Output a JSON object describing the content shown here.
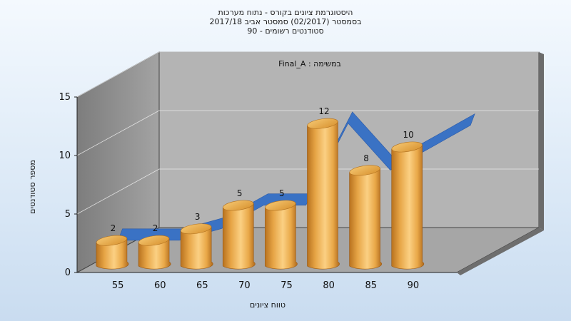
{
  "chart_data": {
    "type": "bar",
    "title_lines": [
      "היסטוגרמת ציונים בקורס - נתוח מערכות",
      "בסמסטר  (02/2017)  סמסטר אביב 2017/18",
      "סטודנטים רשומים - 90"
    ],
    "annotation": "במשימה : Final_A",
    "xlabel": "טווח ציונים",
    "ylabel": "מספר סטודנטים",
    "categories": [
      "55",
      "60",
      "65",
      "70",
      "75",
      "80",
      "85",
      "90"
    ],
    "series": [
      {
        "type": "bar",
        "values": [
          2,
          2,
          3,
          5,
          5,
          12,
          8,
          10
        ]
      },
      {
        "type": "line",
        "values": [
          2,
          2,
          3,
          5,
          5,
          12,
          8,
          10
        ]
      }
    ],
    "y_ticks": [
      0,
      5,
      10,
      15
    ],
    "ylim": [
      0,
      15
    ],
    "grid": true,
    "colors": {
      "bar": "#e8a84c",
      "bar_top": "#f0bf66",
      "ribbon": "#3a72c4",
      "back_wall": "#b4b4b4",
      "side_wall": "#8c8c8c",
      "floor": "#a6a6a6"
    }
  }
}
